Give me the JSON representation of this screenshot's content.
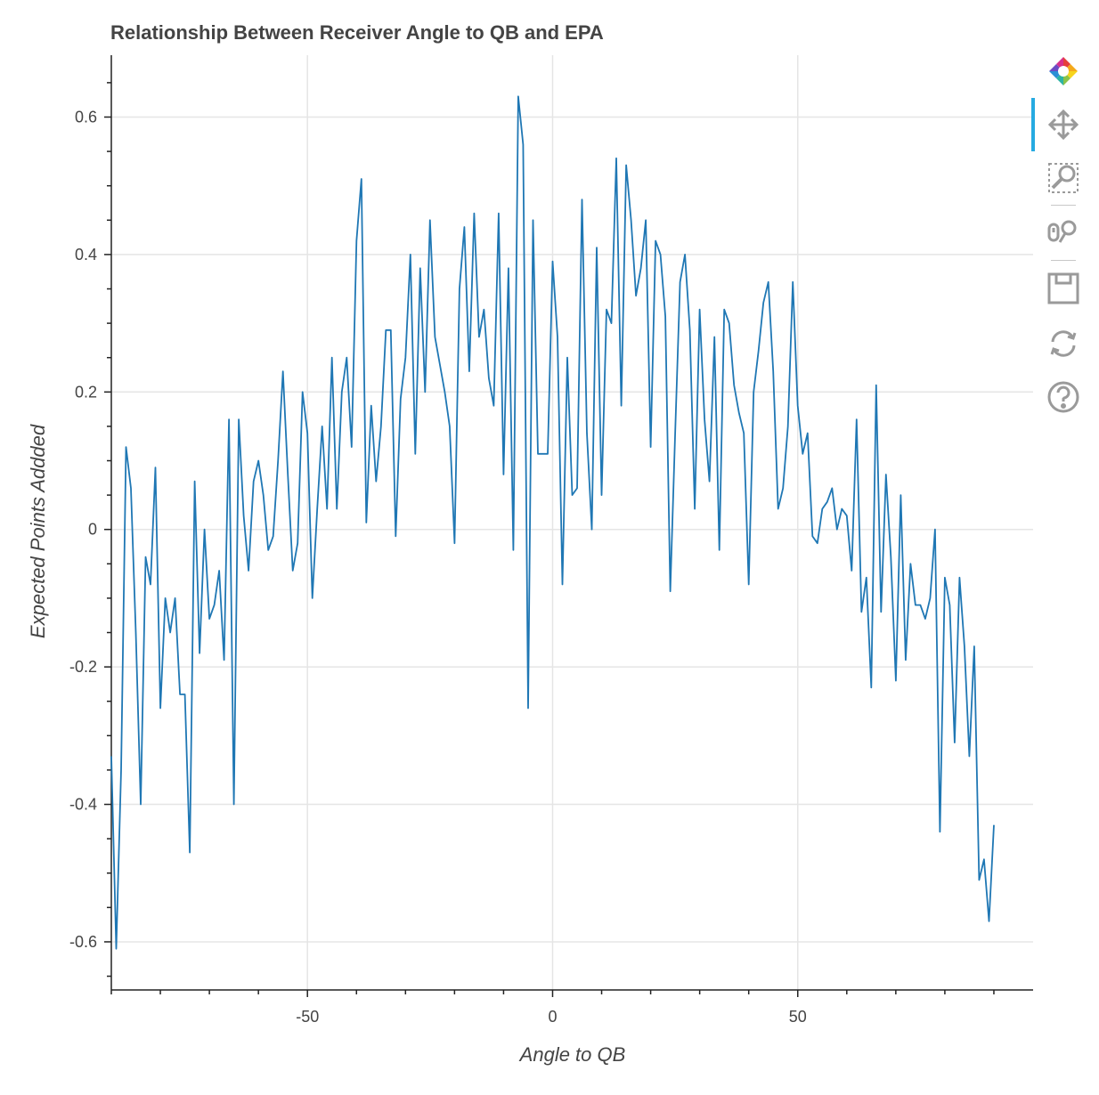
{
  "chart_data": {
    "type": "line",
    "title": "Relationship Between Receiver Angle to QB and EPA",
    "xlabel": "Angle to QB",
    "ylabel": "Expected Points Addded",
    "xlim": [
      -90,
      98
    ],
    "ylim": [
      -0.67,
      0.69
    ],
    "x_major_ticks": [
      -50,
      0,
      50
    ],
    "y_major_ticks": [
      -0.6,
      -0.4,
      -0.2,
      0,
      0.2,
      0.4,
      0.6
    ],
    "x_tick_labels": [
      "-50",
      "0",
      "50"
    ],
    "y_tick_labels": [
      "-0.6",
      "-0.4",
      "-0.2",
      "0",
      "0.2",
      "0.4",
      "0.6"
    ],
    "grid": true,
    "series_color": "#1f77b4",
    "x": [
      -90,
      -89,
      -88,
      -87,
      -86,
      -85,
      -84,
      -83,
      -82,
      -81,
      -80,
      -79,
      -78,
      -77,
      -76,
      -75,
      -74,
      -73,
      -72,
      -71,
      -70,
      -69,
      -68,
      -67,
      -66,
      -65,
      -64,
      -63,
      -62,
      -61,
      -60,
      -59,
      -58,
      -57,
      -56,
      -55,
      -54,
      -53,
      -52,
      -51,
      -50,
      -49,
      -48,
      -47,
      -46,
      -45,
      -44,
      -43,
      -42,
      -41,
      -40,
      -39,
      -38,
      -37,
      -36,
      -35,
      -34,
      -33,
      -32,
      -31,
      -30,
      -29,
      -28,
      -27,
      -26,
      -25,
      -24,
      -23,
      -22,
      -21,
      -20,
      -19,
      -18,
      -17,
      -16,
      -15,
      -14,
      -13,
      -12,
      -11,
      -10,
      -9,
      -8,
      -7,
      -6,
      -5,
      -4,
      -3,
      -2,
      -1,
      0,
      1,
      2,
      3,
      4,
      5,
      6,
      7,
      8,
      9,
      10,
      11,
      12,
      13,
      14,
      15,
      16,
      17,
      18,
      19,
      20,
      21,
      22,
      23,
      24,
      25,
      26,
      27,
      28,
      29,
      30,
      31,
      32,
      33,
      34,
      35,
      36,
      37,
      38,
      39,
      40,
      41,
      42,
      43,
      44,
      45,
      46,
      47,
      48,
      49,
      50,
      51,
      52,
      53,
      54,
      55,
      56,
      57,
      58,
      59,
      60,
      61,
      62,
      63,
      64,
      65,
      66,
      67,
      68,
      69,
      70,
      71,
      72,
      73,
      74,
      75,
      76,
      77,
      78,
      79,
      80,
      81,
      82,
      83,
      84,
      85,
      86,
      87,
      88,
      89,
      90
    ],
    "y": [
      -0.33,
      -0.61,
      -0.35,
      0.12,
      0.06,
      -0.15,
      -0.4,
      -0.04,
      -0.08,
      0.09,
      -0.26,
      -0.1,
      -0.15,
      -0.1,
      -0.24,
      -0.24,
      -0.47,
      0.07,
      -0.18,
      0.0,
      -0.13,
      -0.11,
      -0.06,
      -0.19,
      0.16,
      -0.4,
      0.16,
      0.02,
      -0.06,
      0.07,
      0.1,
      0.05,
      -0.03,
      -0.01,
      0.1,
      0.23,
      0.08,
      -0.06,
      -0.02,
      0.2,
      0.14,
      -0.1,
      0.03,
      0.15,
      0.03,
      0.25,
      0.03,
      0.2,
      0.25,
      0.12,
      0.42,
      0.51,
      0.01,
      0.18,
      0.07,
      0.15,
      0.29,
      0.29,
      -0.01,
      0.19,
      0.25,
      0.4,
      0.11,
      0.38,
      0.2,
      0.45,
      0.28,
      0.24,
      0.2,
      0.15,
      -0.02,
      0.35,
      0.44,
      0.23,
      0.46,
      0.28,
      0.32,
      0.22,
      0.18,
      0.46,
      0.08,
      0.38,
      -0.03,
      0.63,
      0.56,
      -0.26,
      0.45,
      0.11,
      0.11,
      0.11,
      0.39,
      0.28,
      -0.08,
      0.25,
      0.05,
      0.06,
      0.48,
      0.14,
      0.0,
      0.41,
      0.05,
      0.32,
      0.3,
      0.54,
      0.18,
      0.53,
      0.45,
      0.34,
      0.38,
      0.45,
      0.12,
      0.42,
      0.4,
      0.31,
      -0.09,
      0.14,
      0.36,
      0.4,
      0.29,
      0.03,
      0.32,
      0.16,
      0.07,
      0.28,
      -0.03,
      0.32,
      0.3,
      0.21,
      0.17,
      0.14,
      -0.08,
      0.2,
      0.26,
      0.33,
      0.36,
      0.23,
      0.03,
      0.06,
      0.15,
      0.36,
      0.18,
      0.11,
      0.14,
      -0.01,
      -0.02,
      0.03,
      0.04,
      0.06,
      0.0,
      0.03,
      0.02,
      -0.06,
      0.16,
      -0.12,
      -0.07,
      -0.23,
      0.21,
      -0.12,
      0.08,
      -0.04,
      -0.22,
      0.05,
      -0.19,
      -0.05,
      -0.11,
      -0.11,
      -0.13,
      -0.1,
      0.0,
      -0.44,
      -0.07,
      -0.11,
      -0.31,
      -0.07,
      -0.17,
      -0.33,
      -0.17,
      -0.51,
      -0.48,
      -0.57,
      -0.43
    ]
  },
  "toolbar": {
    "tools": [
      "bokeh-logo-icon",
      "pan-icon",
      "box-zoom-icon",
      "wheel-zoom-icon",
      "save-icon",
      "reset-icon",
      "help-icon"
    ]
  }
}
